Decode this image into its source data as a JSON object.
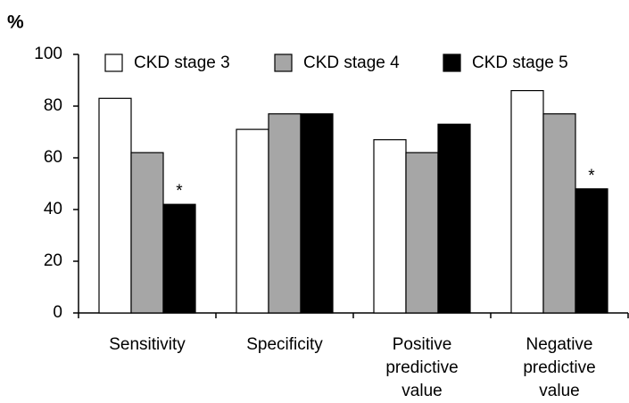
{
  "chart_data": {
    "type": "bar",
    "y_label": "%",
    "categories": [
      "Sensitivity",
      "Specificity",
      "Positive\npredictive\nvalue",
      "Negative\npredictive\nvalue"
    ],
    "series": [
      {
        "name": "CKD stage 3",
        "color": "#ffffff",
        "values": [
          83,
          71,
          67,
          86
        ]
      },
      {
        "name": "CKD stage 4",
        "color": "#a6a6a6",
        "values": [
          62,
          77,
          62,
          77
        ]
      },
      {
        "name": "CKD stage 5",
        "color": "#000000",
        "values": [
          42,
          77,
          73,
          48
        ]
      }
    ],
    "annotations": [
      {
        "text": "*",
        "category": "Sensitivity",
        "series": "CKD stage 5"
      },
      {
        "text": "*",
        "category": "Negative\npredictive\nvalue",
        "series": "CKD stage 5"
      }
    ],
    "ylim": [
      0,
      100
    ],
    "yticks": [
      0,
      20,
      40,
      60,
      80,
      100
    ],
    "legend": "top"
  }
}
